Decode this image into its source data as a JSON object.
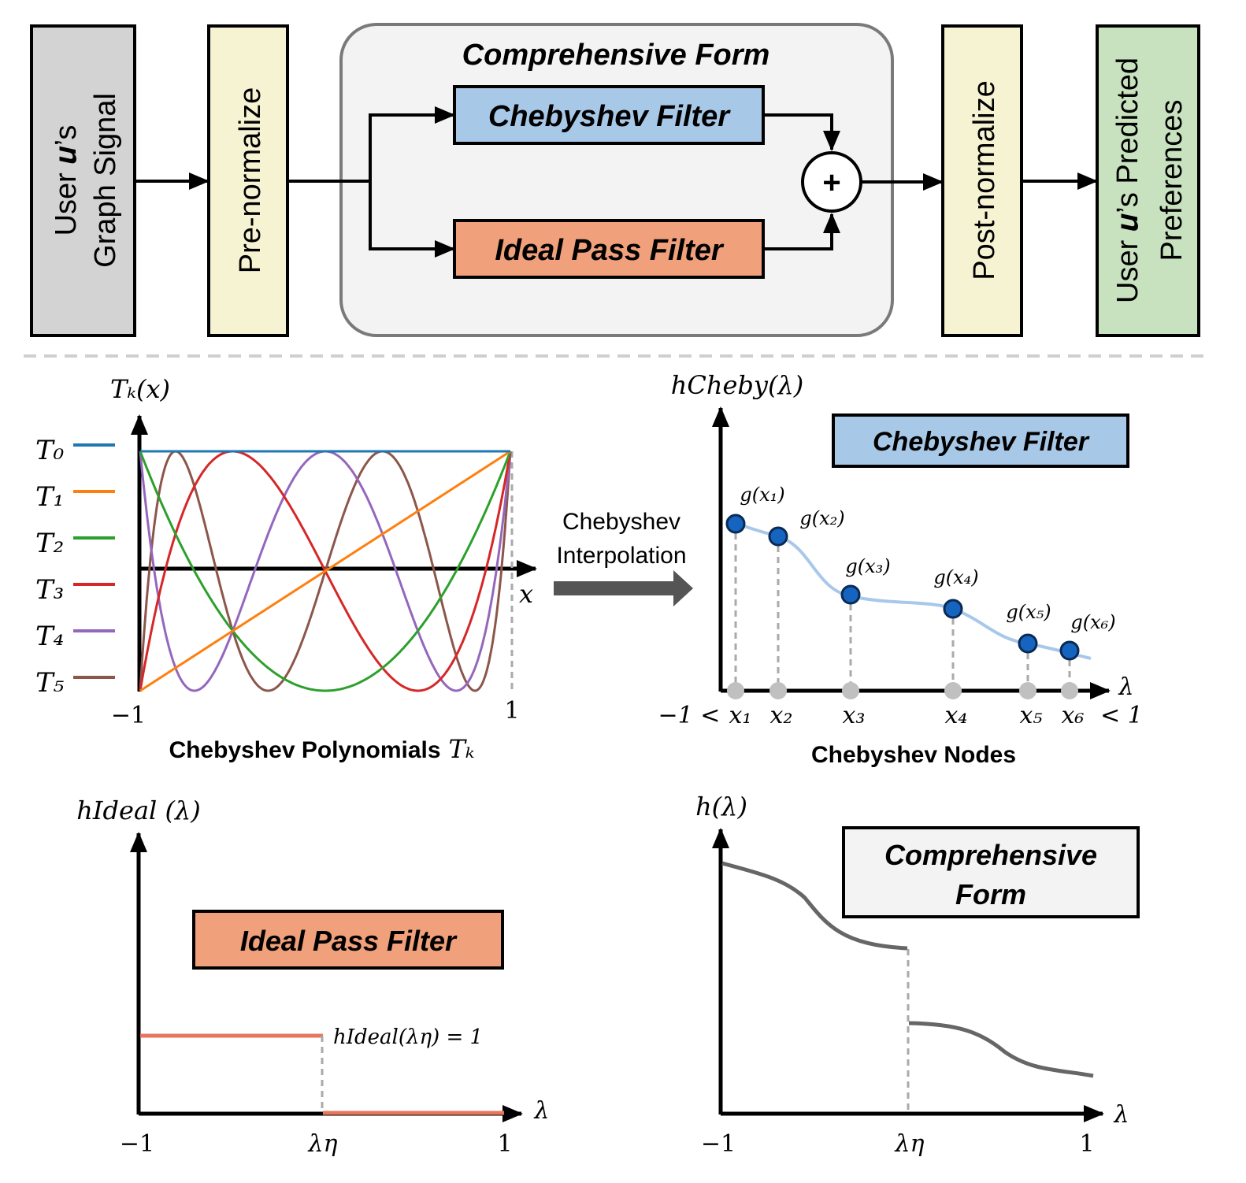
{
  "pipeline": {
    "input_block": {
      "line1": "User 𝒖’s",
      "line2": "Graph Signal",
      "color": "#d3d3d3"
    },
    "pre_normalize": {
      "label": "Pre-normalize",
      "color": "#f6f3d2"
    },
    "comprehensive_form": {
      "title": "Comprehensive Form",
      "color": "#f3f3f3"
    },
    "chebyshev_filter": {
      "label": "Chebyshev Filter",
      "color": "#a8c8e8"
    },
    "ideal_pass_filter": {
      "label": "Ideal Pass Filter",
      "color": "#f0a07a"
    },
    "sum_symbol": "+",
    "post_normalize": {
      "label": "Post-normalize",
      "color": "#f6f3d2"
    },
    "output_block": {
      "line1": "User 𝒖’s  Predicted",
      "line2": "Preferences",
      "color": "#c8e2bf"
    }
  },
  "chebyshev_polynomials_panel": {
    "y_axis_label": "Tₖ(𝑥)",
    "x_axis_label": "𝑥",
    "x_ticks": [
      "−1",
      "1"
    ],
    "caption": "Chebyshev Polynomials",
    "caption_symbol": "𝑇ₖ",
    "legend": [
      {
        "label": "T₀",
        "color": "#1f77b4"
      },
      {
        "label": "T₁",
        "color": "#ff7f0e"
      },
      {
        "label": "T₂",
        "color": "#2ca02c"
      },
      {
        "label": "T₃",
        "color": "#d62728"
      },
      {
        "label": "T₄",
        "color": "#9467bd"
      },
      {
        "label": "T₅",
        "color": "#8c564b"
      }
    ]
  },
  "interpolation_arrow": {
    "line1": "Chebyshev",
    "line2": "Interpolation"
  },
  "chebyshev_filter_panel": {
    "y_axis_label": "hCheby(λ)",
    "x_axis_label": "λ",
    "legend_box": "Chebyshev Filter",
    "caption": "Chebyshev Nodes",
    "left_bound": "−1 <",
    "right_bound": "< 1",
    "nodes": [
      {
        "x_label": "x₁",
        "g_label": "g(x₁)"
      },
      {
        "x_label": "x₂",
        "g_label": "g(x₂)"
      },
      {
        "x_label": "x₃",
        "g_label": "g(x₃)"
      },
      {
        "x_label": "x₄",
        "g_label": "g(x₄)"
      },
      {
        "x_label": "x₅",
        "g_label": "g(x₅)"
      },
      {
        "x_label": "x₆",
        "g_label": "g(x₆)"
      }
    ],
    "curve_color": "#a7c8ea",
    "node_color": "#1565c0"
  },
  "ideal_filter_panel": {
    "y_axis_label": "hIdeal (λ)",
    "x_axis_label": "λ",
    "legend_box": "Ideal Pass Filter",
    "annotation": "hIdeal(λη) = 1",
    "x_ticks": [
      "−1",
      "λη",
      "1"
    ],
    "line_color": "#e8765c"
  },
  "comprehensive_panel": {
    "y_axis_label": "h(λ)",
    "x_axis_label": "λ",
    "legend_box": "Comprehensive Form",
    "x_ticks": [
      "−1",
      "λη",
      "1"
    ],
    "line_color": "#666666"
  }
}
